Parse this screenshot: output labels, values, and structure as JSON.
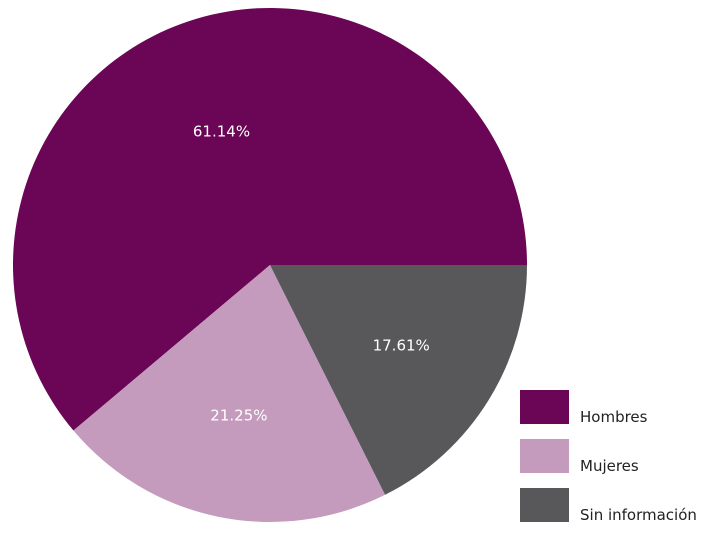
{
  "chart_data": {
    "type": "pie",
    "title": "",
    "slices": [
      {
        "label": "Hombres",
        "value": 61.14,
        "display": "61.14%",
        "color": "#6b0555"
      },
      {
        "label": "Mujeres",
        "value": 21.25,
        "display": "21.25%",
        "color": "#c49bbd"
      },
      {
        "label": "Sin información",
        "value": 17.61,
        "display": "17.61%",
        "color": "#58585a"
      }
    ],
    "start_angle_deg": 0,
    "direction": "counterclockwise",
    "legend_placement": "bottom-right"
  },
  "legend": {
    "items": [
      {
        "label": "Hombres",
        "color": "#6b0555"
      },
      {
        "label": "Mujeres",
        "color": "#c49bbd"
      },
      {
        "label": "Sin información",
        "color": "#58585a"
      }
    ]
  }
}
